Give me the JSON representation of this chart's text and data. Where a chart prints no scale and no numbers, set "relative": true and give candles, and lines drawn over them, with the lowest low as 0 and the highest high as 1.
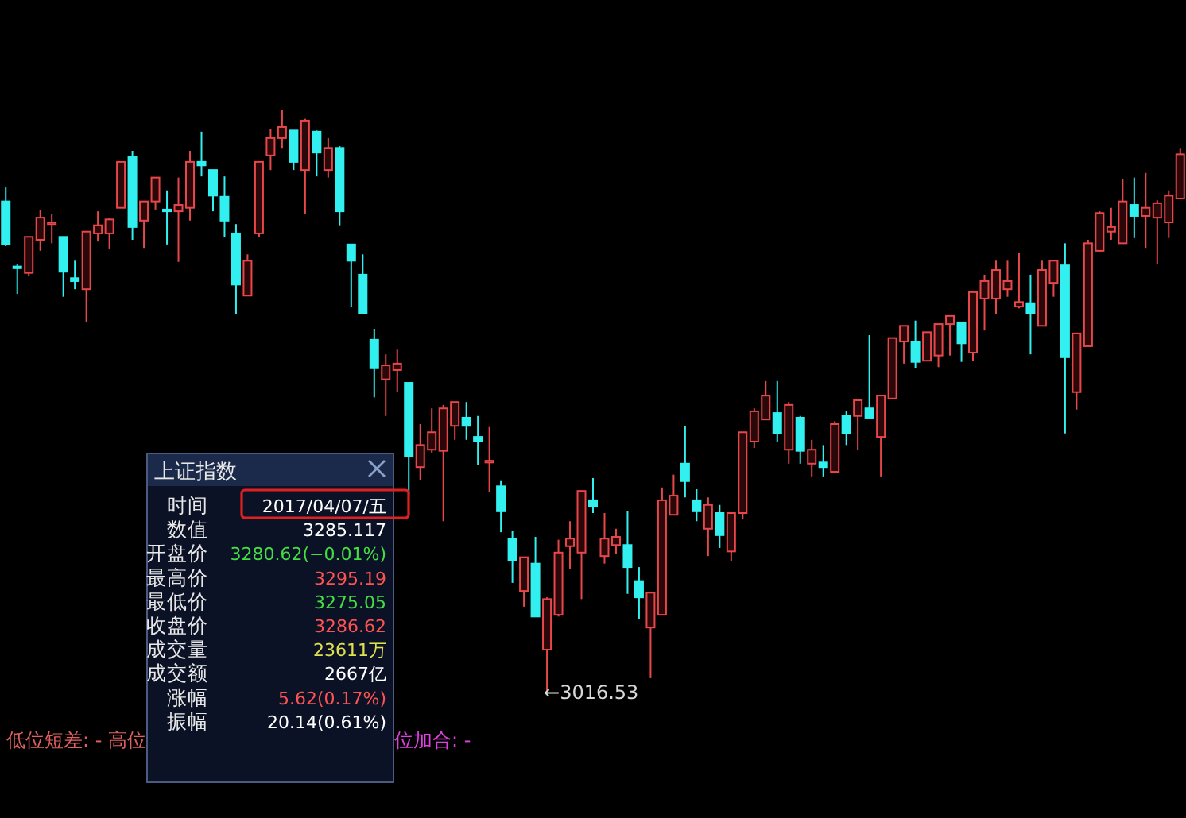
{
  "chart_data": {
    "type": "candlestick",
    "relative": true,
    "categories": [
      null,
      null,
      null,
      null,
      null,
      null,
      null,
      null,
      null,
      null,
      null,
      null,
      null,
      null,
      null,
      null,
      null,
      null,
      null,
      null,
      null,
      null,
      null,
      null,
      null,
      null,
      null,
      null,
      null,
      null,
      null,
      null,
      null,
      null,
      null,
      null,
      null,
      null,
      null,
      null,
      null,
      null,
      null,
      null,
      null,
      null,
      null,
      null,
      null,
      null,
      null,
      null,
      null,
      null,
      null,
      null,
      null,
      null,
      null,
      null,
      null,
      null,
      null,
      null,
      null,
      null,
      null,
      null,
      null,
      null,
      null,
      null,
      null,
      null,
      null,
      null,
      null,
      null,
      null,
      null,
      null,
      null,
      null,
      null,
      null,
      null,
      null,
      null,
      null,
      null,
      null,
      null,
      null,
      null,
      null,
      null,
      null,
      null,
      null,
      null,
      null,
      null,
      null
    ],
    "ohlc": [
      [
        0.842,
        0.866,
        0.765,
        0.768
      ],
      [
        0.73,
        0.735,
        0.683,
        0.727
      ],
      [
        0.719,
        0.781,
        0.713,
        0.781
      ],
      [
        0.776,
        0.828,
        0.757,
        0.814
      ],
      [
        0.803,
        0.82,
        0.77,
        0.806
      ],
      [
        0.781,
        0.781,
        0.678,
        0.721
      ],
      [
        0.71,
        0.74,
        0.691,
        0.705
      ],
      [
        0.691,
        0.79,
        0.634,
        0.79
      ],
      [
        0.787,
        0.825,
        0.773,
        0.801
      ],
      [
        0.787,
        0.814,
        0.76,
        0.811
      ],
      [
        0.831,
        0.91,
        0.831,
        0.91
      ],
      [
        0.918,
        0.929,
        0.776,
        0.798
      ],
      [
        0.809,
        0.842,
        0.762,
        0.842
      ],
      [
        0.842,
        0.883,
        0.828,
        0.883
      ],
      [
        0.828,
        0.861,
        0.768,
        0.825
      ],
      [
        0.825,
        0.883,
        0.738,
        0.836
      ],
      [
        0.831,
        0.929,
        0.809,
        0.91
      ],
      [
        0.91,
        0.962,
        0.885,
        0.904
      ],
      [
        0.896,
        0.896,
        0.825,
        0.852
      ],
      [
        0.85,
        0.885,
        0.781,
        0.809
      ],
      [
        0.787,
        0.803,
        0.648,
        0.699
      ],
      [
        0.68,
        0.751,
        0.68,
        0.74
      ],
      [
        0.787,
        0.91,
        0.781,
        0.91
      ],
      [
        0.921,
        0.967,
        0.896,
        0.951
      ],
      [
        0.951,
        1.0,
        0.934,
        0.97
      ],
      [
        0.964,
        0.964,
        0.896,
        0.91
      ],
      [
        0.896,
        0.984,
        0.82,
        0.981
      ],
      [
        0.962,
        0.964,
        0.885,
        0.926
      ],
      [
        0.896,
        0.951,
        0.883,
        0.934
      ],
      [
        0.934,
        0.937,
        0.801,
        0.825
      ],
      [
        0.768,
        0.768,
        0.661,
        0.74
      ],
      [
        0.716,
        0.751,
        0.65,
        0.65
      ],
      [
        0.604,
        0.623,
        0.505,
        0.555
      ],
      [
        0.536,
        0.579,
        0.473,
        0.56
      ],
      [
        0.552,
        0.587,
        0.514,
        0.563
      ],
      [
        0.53,
        0.53,
        0.339,
        0.404
      ],
      [
        0.385,
        0.459,
        0.363,
        0.423
      ],
      [
        0.415,
        0.486,
        0.41,
        0.445
      ],
      [
        0.413,
        0.492,
        0.292,
        0.486
      ],
      [
        0.456,
        0.497,
        0.432,
        0.497
      ],
      [
        0.47,
        0.497,
        0.432,
        0.456
      ],
      [
        0.437,
        0.473,
        0.388,
        0.429
      ],
      [
        0.393,
        0.454,
        0.342,
        0.396
      ],
      [
        0.352,
        0.361,
        0.273,
        0.309
      ],
      [
        0.262,
        0.276,
        0.186,
        0.224
      ],
      [
        0.172,
        0.23,
        0.145,
        0.23
      ],
      [
        0.219,
        0.265,
        0.128,
        0.128
      ],
      [
        0.071,
        0.161,
        0.0,
        0.158
      ],
      [
        0.131,
        0.26,
        0.128,
        0.238
      ],
      [
        0.249,
        0.292,
        0.21,
        0.262
      ],
      [
        0.238,
        0.344,
        0.158,
        0.344
      ],
      [
        0.328,
        0.366,
        0.306,
        0.317
      ],
      [
        0.232,
        0.306,
        0.219,
        0.262
      ],
      [
        0.251,
        0.279,
        0.235,
        0.265
      ],
      [
        0.251,
        0.309,
        0.167,
        0.213
      ],
      [
        0.189,
        0.213,
        0.123,
        0.161
      ],
      [
        0.109,
        0.169,
        0.022,
        0.169
      ],
      [
        0.131,
        0.35,
        0.131,
        0.328
      ],
      [
        0.303,
        0.372,
        0.303,
        0.336
      ],
      [
        0.391,
        0.456,
        0.333,
        0.361
      ],
      [
        0.328,
        0.347,
        0.292,
        0.309
      ],
      [
        0.279,
        0.333,
        0.232,
        0.32
      ],
      [
        0.306,
        0.32,
        0.246,
        0.268
      ],
      [
        0.24,
        0.306,
        0.224,
        0.306
      ],
      [
        0.306,
        0.445,
        0.295,
        0.445
      ],
      [
        0.429,
        0.486,
        0.418,
        0.481
      ],
      [
        0.467,
        0.533,
        0.467,
        0.508
      ],
      [
        0.478,
        0.533,
        0.429,
        0.443
      ],
      [
        0.415,
        0.497,
        0.391,
        0.492
      ],
      [
        0.47,
        0.473,
        0.391,
        0.413
      ],
      [
        0.391,
        0.432,
        0.369,
        0.415
      ],
      [
        0.393,
        0.423,
        0.369,
        0.385
      ],
      [
        0.377,
        0.464,
        0.377,
        0.459
      ],
      [
        0.473,
        0.481,
        0.423,
        0.443
      ],
      [
        0.473,
        0.5,
        0.415,
        0.5
      ],
      [
        0.486,
        0.612,
        0.47,
        0.47
      ],
      [
        0.437,
        0.508,
        0.369,
        0.508
      ],
      [
        0.503,
        0.607,
        0.503,
        0.607
      ],
      [
        0.601,
        0.628,
        0.563,
        0.628
      ],
      [
        0.601,
        0.637,
        0.555,
        0.566
      ],
      [
        0.568,
        0.617,
        0.568,
        0.617
      ],
      [
        0.577,
        0.631,
        0.557,
        0.631
      ],
      [
        0.631,
        0.645,
        0.577,
        0.645
      ],
      [
        0.634,
        0.634,
        0.566,
        0.598
      ],
      [
        0.582,
        0.686,
        0.568,
        0.686
      ],
      [
        0.675,
        0.716,
        0.62,
        0.705
      ],
      [
        0.675,
        0.74,
        0.648,
        0.724
      ],
      [
        0.691,
        0.74,
        0.678,
        0.705
      ],
      [
        0.661,
        0.754,
        0.658,
        0.669
      ],
      [
        0.667,
        0.716,
        0.579,
        0.65
      ],
      [
        0.628,
        0.74,
        0.628,
        0.724
      ],
      [
        0.702,
        0.74,
        0.678,
        0.74
      ],
      [
        0.732,
        0.77,
        0.443,
        0.574
      ],
      [
        0.514,
        0.615,
        0.484,
        0.615
      ],
      [
        0.593,
        0.776,
        0.593,
        0.77
      ],
      [
        0.757,
        0.825,
        0.757,
        0.822
      ],
      [
        0.79,
        0.831,
        0.776,
        0.798
      ],
      [
        0.77,
        0.88,
        0.77,
        0.842
      ],
      [
        0.836,
        0.883,
        0.779,
        0.817
      ],
      [
        0.817,
        0.891,
        0.762,
        0.831
      ],
      [
        0.814,
        0.844,
        0.735,
        0.839
      ],
      [
        0.806,
        0.861,
        0.779,
        0.852
      ],
      [
        0.847,
        0.934,
        0.847,
        0.923
      ]
    ],
    "colors": [
      "#33f0f0",
      "#33f0f0",
      "#e8474a",
      "#e8474a",
      "#e8474a",
      "#33f0f0",
      "#33f0f0",
      "#e8474a",
      "#e8474a",
      "#e8474a",
      "#e8474a",
      "#33f0f0",
      "#e8474a",
      "#e8474a",
      "#33f0f0",
      "#e8474a",
      "#e8474a",
      "#33f0f0",
      "#33f0f0",
      "#33f0f0",
      "#33f0f0",
      "#e8474a",
      "#e8474a",
      "#e8474a",
      "#e8474a",
      "#33f0f0",
      "#e8474a",
      "#33f0f0",
      "#e8474a",
      "#33f0f0",
      "#33f0f0",
      "#33f0f0",
      "#33f0f0",
      "#e8474a",
      "#e8474a",
      "#33f0f0",
      "#e8474a",
      "#e8474a",
      "#e8474a",
      "#e8474a",
      "#33f0f0",
      "#33f0f0",
      "#e8474a",
      "#33f0f0",
      "#33f0f0",
      "#e8474a",
      "#33f0f0",
      "#e8474a",
      "#e8474a",
      "#e8474a",
      "#e8474a",
      "#33f0f0",
      "#e8474a",
      "#e8474a",
      "#33f0f0",
      "#33f0f0",
      "#e8474a",
      "#e8474a",
      "#e8474a",
      "#33f0f0",
      "#33f0f0",
      "#e8474a",
      "#33f0f0",
      "#e8474a",
      "#e8474a",
      "#e8474a",
      "#e8474a",
      "#33f0f0",
      "#e8474a",
      "#33f0f0",
      "#e8474a",
      "#33f0f0",
      "#e8474a",
      "#33f0f0",
      "#e8474a",
      "#33f0f0",
      "#e8474a",
      "#e8474a",
      "#e8474a",
      "#33f0f0",
      "#e8474a",
      "#e8474a",
      "#e8474a",
      "#33f0f0",
      "#e8474a",
      "#e8474a",
      "#e8474a",
      "#e8474a",
      "#e8474a",
      "#33f0f0",
      "#e8474a",
      "#e8474a",
      "#33f0f0",
      "#e8474a",
      "#e8474a",
      "#e8474a",
      "#e8474a",
      "#e8474a",
      "#33f0f0",
      "#e8474a",
      "#e8474a",
      "#e8474a",
      "#e8474a"
    ],
    "annotations": [
      "上证指数",
      "时间",
      "2017/04/07/五",
      "数值",
      "3285.117",
      "开盘价",
      "3280.62(−0.01%)",
      "最高价",
      "3295.19",
      "最低价",
      "3275.05",
      "收盘价",
      "3286.62",
      "成交量",
      "23611万",
      "成交额",
      "2667亿",
      "涨幅",
      "5.62(0.17%)",
      "振幅",
      "20.14(0.61%)",
      "←3016.53",
      "低位短差: - 高位",
      "位加合: -"
    ]
  }
}
